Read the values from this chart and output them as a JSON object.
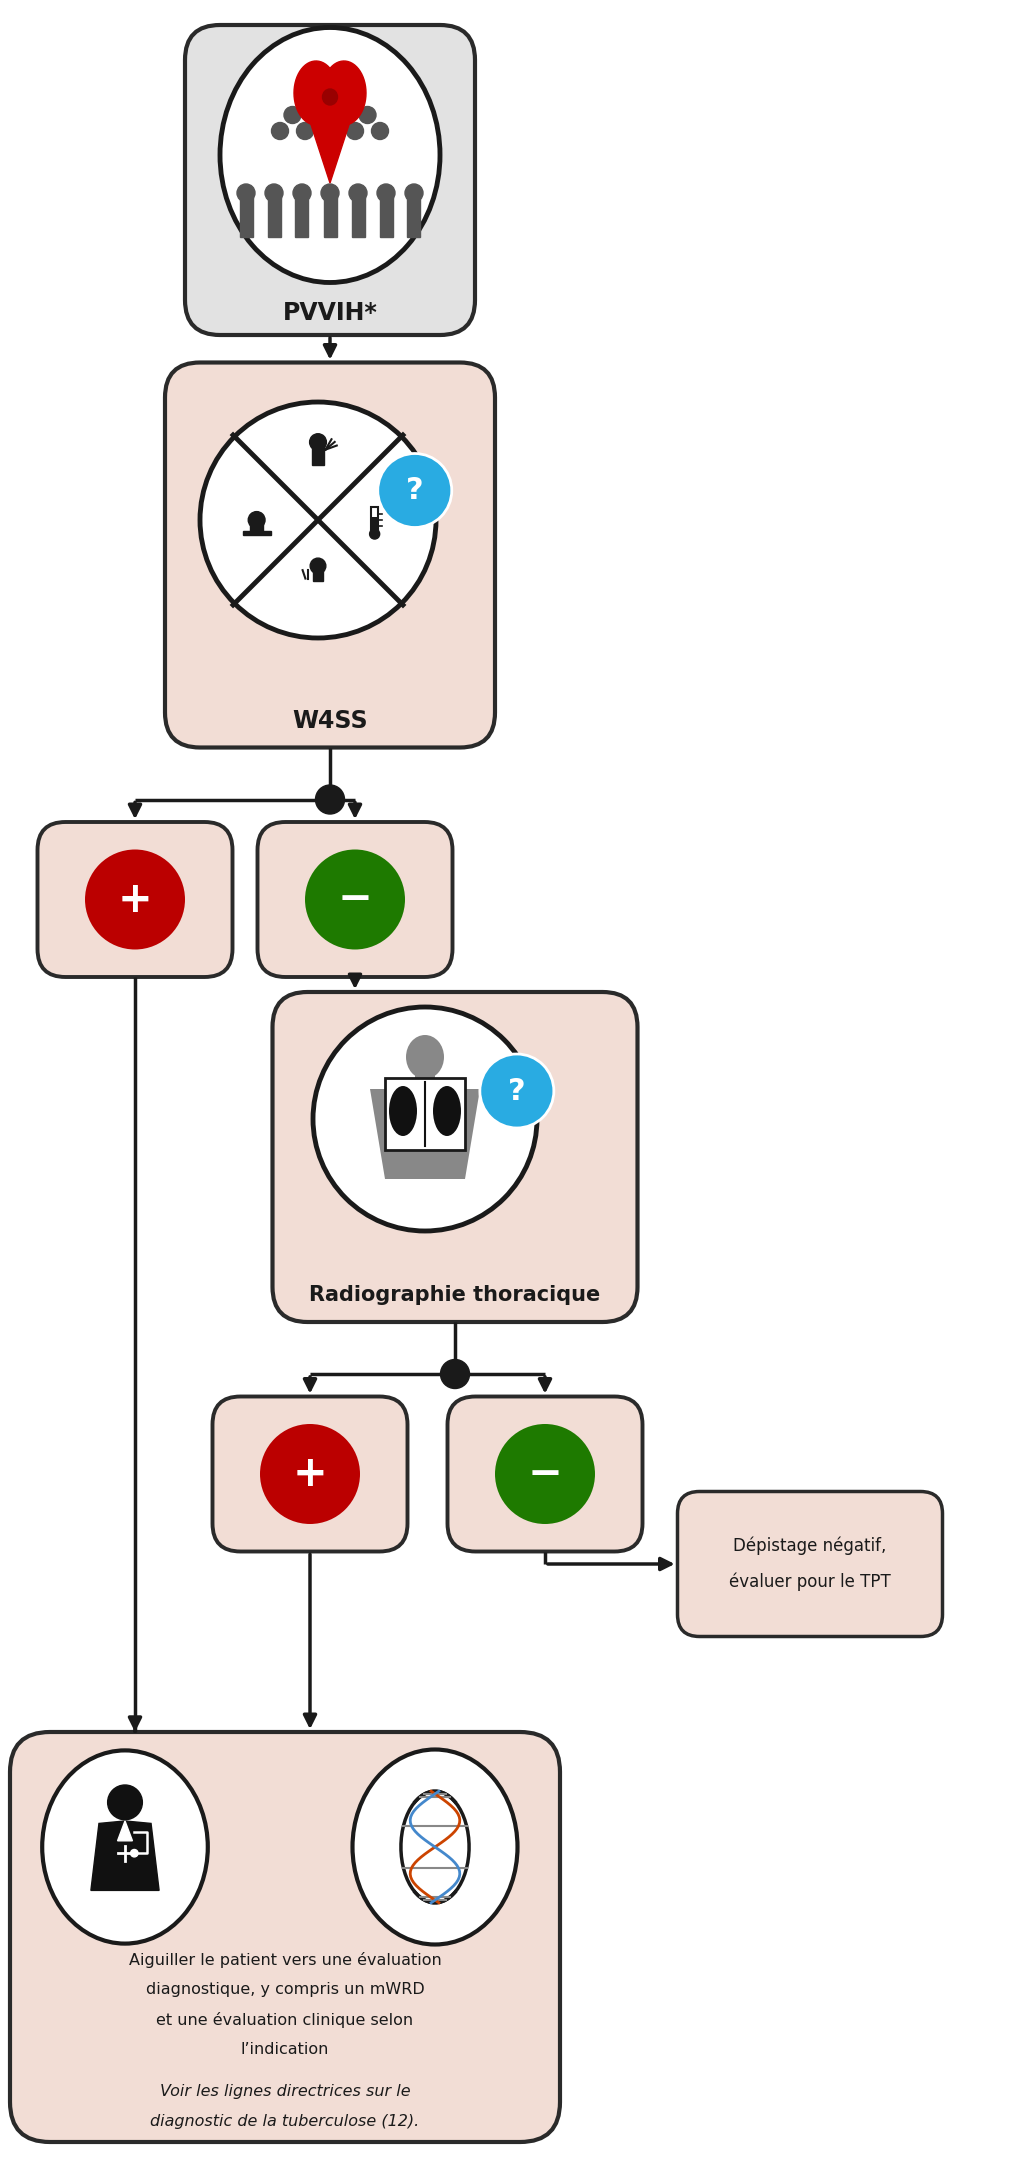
{
  "bg_color": "#ffffff",
  "box_salmon": "#f2ddd5",
  "box_gray": "#e2e2e2",
  "box_border": "#2a2a2a",
  "arrow_color": "#1a1a1a",
  "red_circle": "#bb0000",
  "green_circle": "#1e7a00",
  "blue_circle": "#29abe2",
  "pvvih_label": "PVVIH*",
  "w4ss_label": "W4SS",
  "radio_label": "Radiographie thoracique",
  "neg_box_line1": "Dépistage négatif,",
  "neg_box_line2": "évaluer pour le TPT",
  "bottom_text_1": "Aiguiller le patient vers une évaluation",
  "bottom_text_2": "diagnostique, y compris un mWRD",
  "bottom_text_3": "et une évaluation clinique selon",
  "bottom_text_4": "l’indication",
  "bottom_text_5": "Voir les lignes directrices sur le",
  "bottom_text_6": "diagnostic de la tuberculose (12).",
  "font_size_label": 15,
  "font_size_text": 11.5
}
